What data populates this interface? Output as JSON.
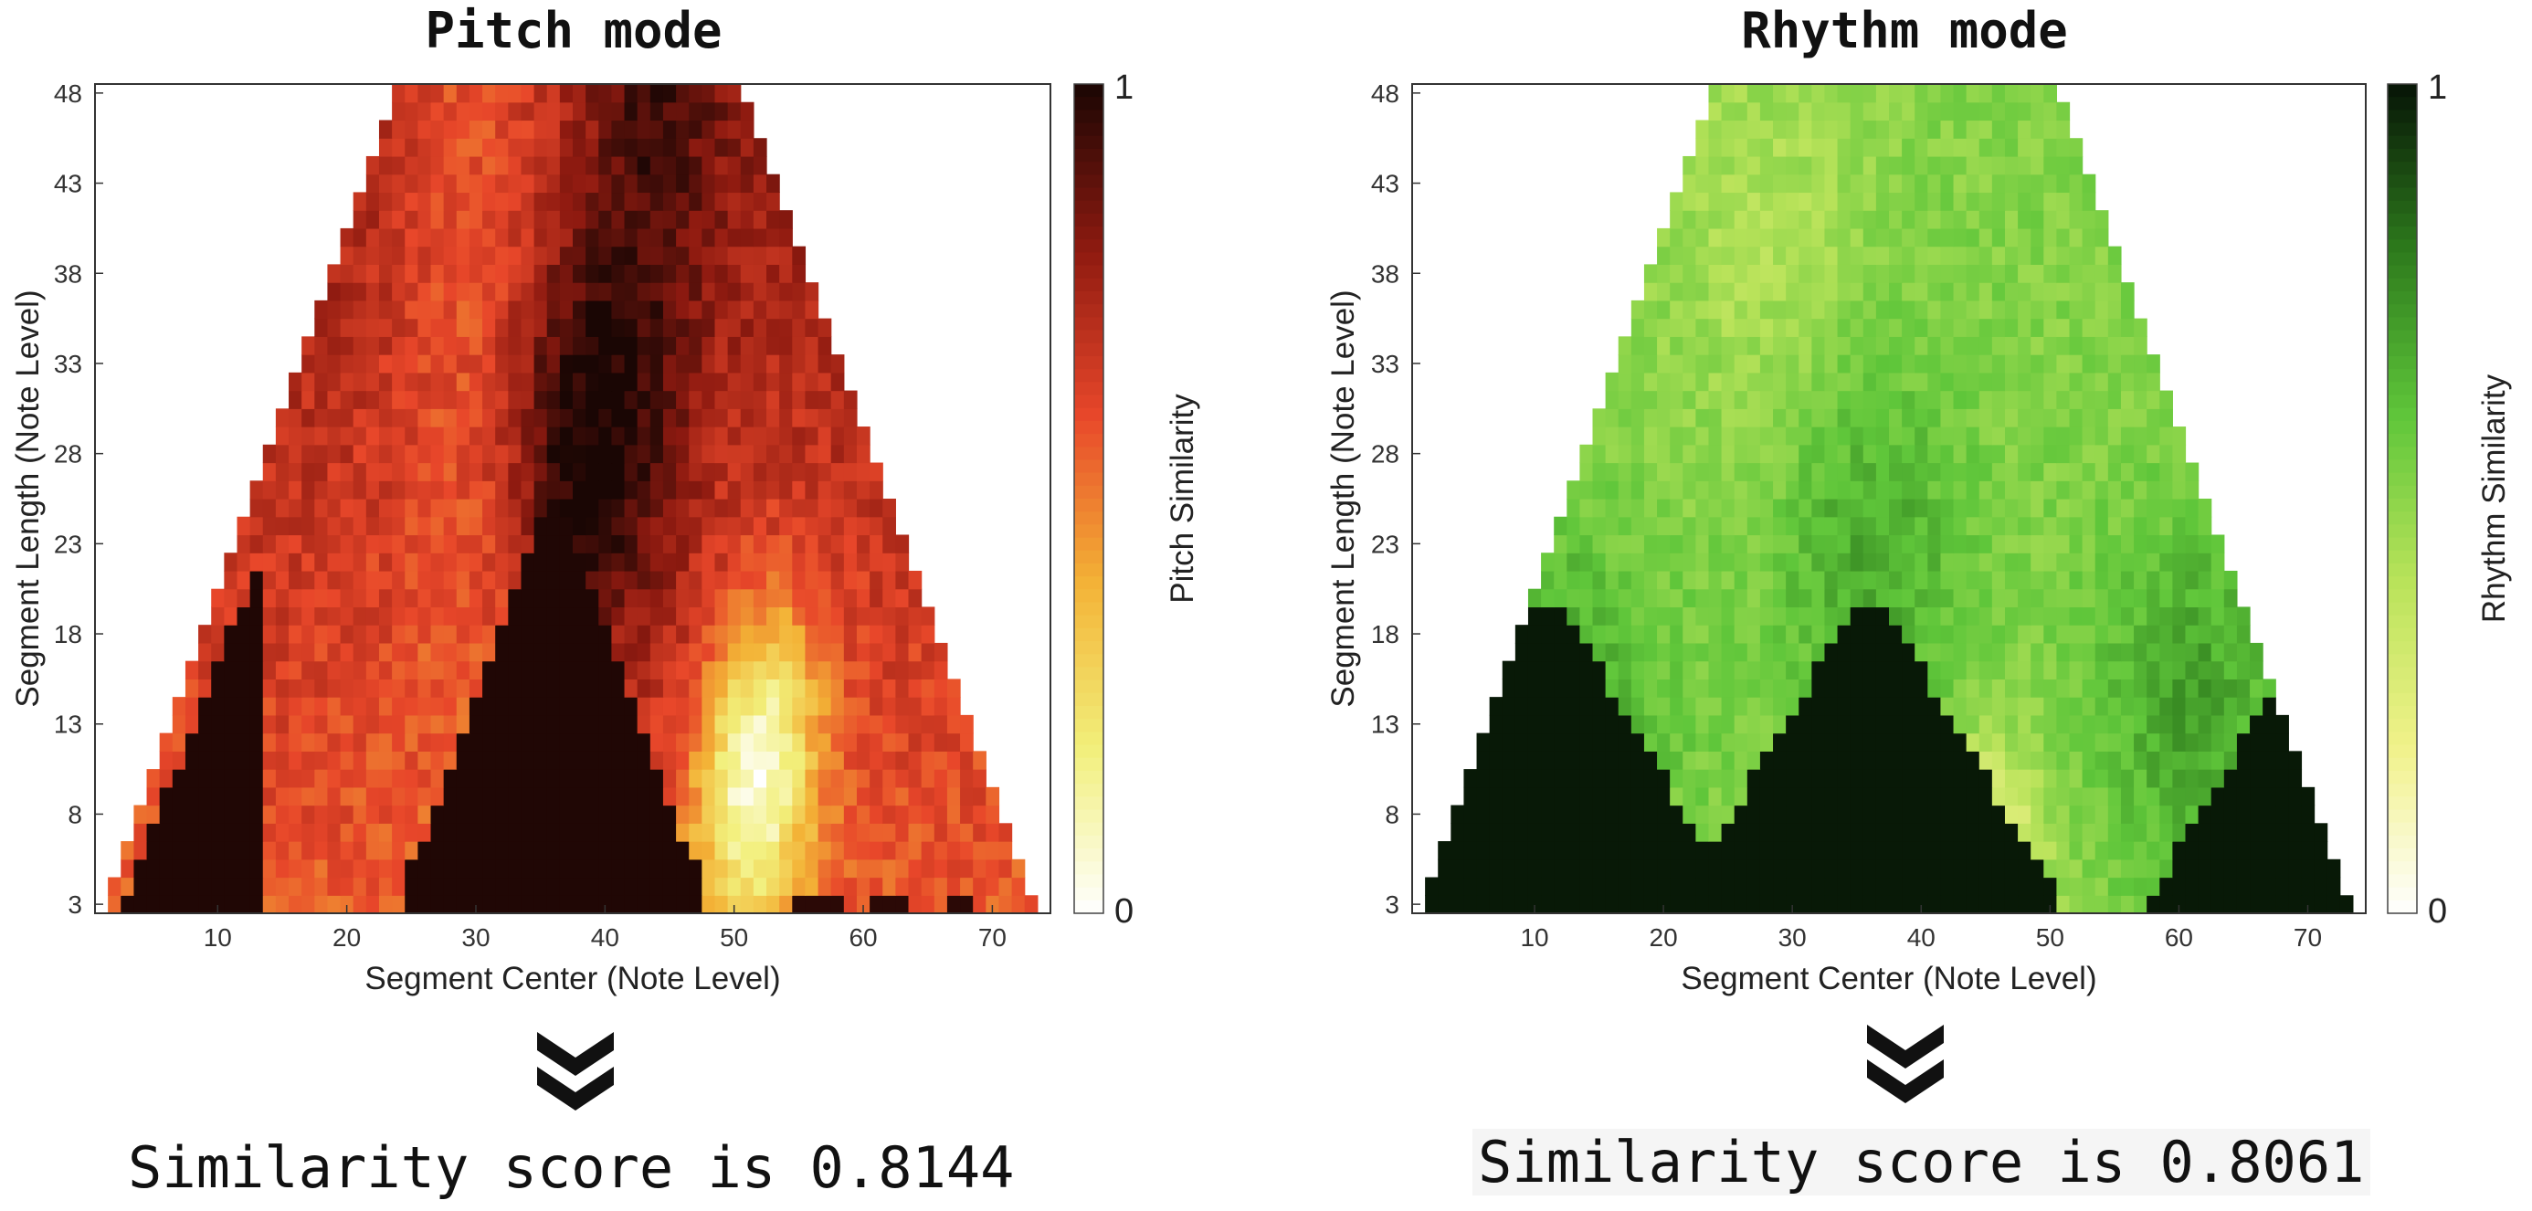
{
  "chart_data": [
    {
      "type": "heatmap",
      "title": "Pitch mode",
      "xlabel": "Segment Center (Note Level)",
      "ylabel": "Segment Length (Note Level)",
      "x_ticks": [
        10,
        20,
        30,
        40,
        50,
        60,
        70
      ],
      "y_ticks": [
        3,
        8,
        13,
        18,
        23,
        28,
        33,
        38,
        43,
        48
      ],
      "xlim": [
        0.5,
        74.5
      ],
      "ylim": [
        2.5,
        48.5
      ],
      "colorbar_label": "Pitch Similarity",
      "colorbar_ticks": [
        "0",
        "1"
      ],
      "colormap": "hot (reversed)",
      "colormap_stops": [
        "#ffffff",
        "#f2ef7a",
        "#f3b236",
        "#e8472a",
        "#8e1a10",
        "#1a0604"
      ],
      "similarity_score": "Similarity score is 0.8144"
    },
    {
      "type": "heatmap",
      "title": "Rhythm mode",
      "xlabel": "Segment Center (Note Level)",
      "ylabel": "Segment Length (Note Level)",
      "x_ticks": [
        10,
        20,
        30,
        40,
        50,
        60,
        70
      ],
      "y_ticks": [
        3,
        8,
        13,
        18,
        23,
        28,
        33,
        38,
        43,
        48
      ],
      "xlim": [
        0.5,
        74.5
      ],
      "ylim": [
        2.5,
        48.5
      ],
      "colorbar_label": "Rhythm Similarity",
      "colorbar_ticks": [
        "0",
        "1"
      ],
      "colormap": "green (reversed)",
      "colormap_stops": [
        "#ffffff",
        "#f1f28a",
        "#b9e35a",
        "#5fc63a",
        "#2d7a1c",
        "#061406"
      ],
      "similarity_score": "Similarity score is 0.8061"
    }
  ]
}
